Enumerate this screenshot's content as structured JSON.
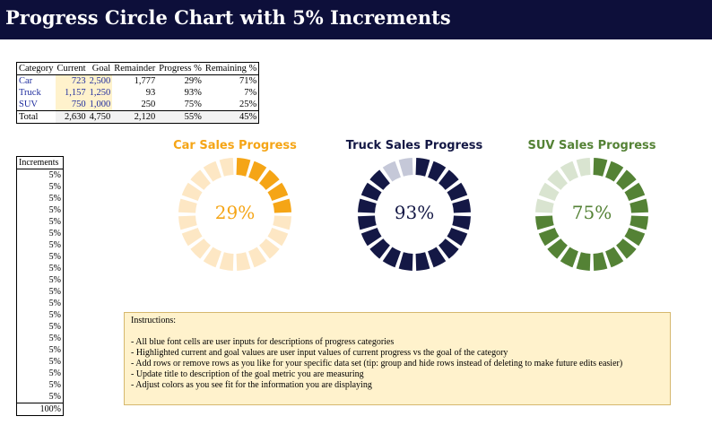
{
  "title": "Progress Circle Chart with 5% Increments",
  "colors": {
    "title_bg": "#0d0f3a",
    "input_blue": "#1f2d9e",
    "highlight": "#fff2cc",
    "car": "#f5a516",
    "car_light": "#fde7c4",
    "truck": "#141845",
    "truck_light": "#c5c8d8",
    "suv": "#548235",
    "suv_light": "#d9e4d0"
  },
  "summary_table": {
    "headers": [
      "Category",
      "Current",
      "Goal",
      "Remainder",
      "Progress %",
      "Remaining %"
    ],
    "rows": [
      {
        "category": "Car",
        "current": "723",
        "goal": "2,500",
        "remainder": "1,777",
        "progress": "29%",
        "remaining": "71%"
      },
      {
        "category": "Truck",
        "current": "1,157",
        "goal": "1,250",
        "remainder": "93",
        "progress": "93%",
        "remaining": "7%"
      },
      {
        "category": "SUV",
        "current": "750",
        "goal": "1,000",
        "remainder": "250",
        "progress": "75%",
        "remaining": "25%"
      }
    ],
    "total": {
      "category": "Total",
      "current": "2,630",
      "goal": "4,750",
      "remainder": "2,120",
      "progress": "55%",
      "remaining": "45%"
    }
  },
  "increments": {
    "header": "Increments",
    "values": [
      "5%",
      "5%",
      "5%",
      "5%",
      "5%",
      "5%",
      "5%",
      "5%",
      "5%",
      "5%",
      "5%",
      "5%",
      "5%",
      "5%",
      "5%",
      "5%",
      "5%",
      "5%",
      "5%",
      "5%"
    ],
    "total": "100%"
  },
  "chart_data": [
    {
      "type": "pie",
      "title": "Car Sales Progress",
      "segments": 20,
      "segment_value_pct": 5,
      "progress_pct": 29,
      "label": "29%"
    },
    {
      "type": "pie",
      "title": "Truck Sales Progress",
      "segments": 20,
      "segment_value_pct": 5,
      "progress_pct": 93,
      "label": "93%"
    },
    {
      "type": "pie",
      "title": "SUV Sales Progress",
      "segments": 20,
      "segment_value_pct": 5,
      "progress_pct": 75,
      "label": "75%"
    }
  ],
  "instructions": {
    "heading": "Instructions:",
    "items": [
      "- All blue font cells are user inputs for descriptions of progress categories",
      "- Highlighted current and goal values are user input values of current progress vs the goal of the category",
      "- Add rows or remove rows as you like for your specific data set (tip: group and hide rows instead of deleting to make future edits easier)",
      "- Update title to description of the goal metric you are measuring",
      "- Adjust colors as you see fit for the information you are displaying"
    ]
  }
}
